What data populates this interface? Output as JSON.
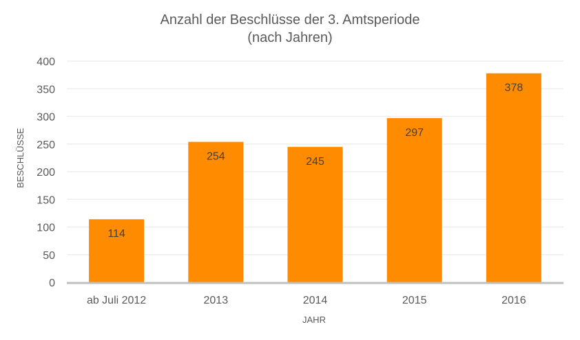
{
  "chart_data": {
    "type": "bar",
    "title": "Anzahl der Beschlüsse der 3. Amtsperiode",
    "subtitle": "(nach Jahren)",
    "xlabel": "JAHR",
    "ylabel": "BESCHLÜSSE",
    "categories": [
      "ab Juli 2012",
      "2013",
      "2014",
      "2015",
      "2016"
    ],
    "values": [
      114,
      254,
      245,
      297,
      378
    ],
    "data_labels": [
      "114",
      "254",
      "245",
      "297",
      "378"
    ],
    "ylim": [
      0,
      400
    ],
    "yticks": [
      0,
      50,
      100,
      150,
      200,
      250,
      300,
      350,
      400
    ],
    "grid": true,
    "legend": "none",
    "bar_color": "#FF8C00"
  }
}
